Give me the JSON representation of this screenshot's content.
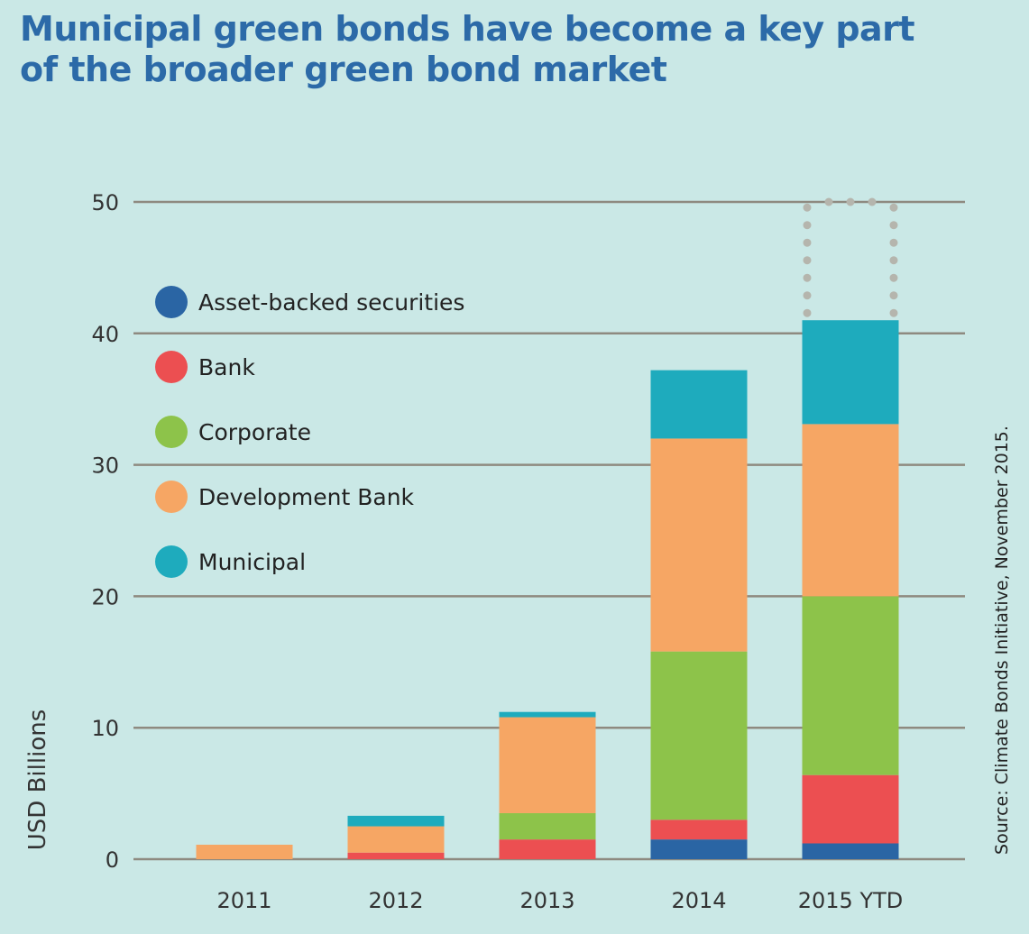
{
  "title": "Municipal green bonds have become a key part of the broader green bond market",
  "source": "Source: Climate Bonds Initiative, November 2015.",
  "chart_data": {
    "type": "bar",
    "stacked": true,
    "title": "Municipal green bonds have become a key part of the broader green bond market",
    "xlabel": "",
    "ylabel": "USD Billions",
    "ylim": [
      0,
      50
    ],
    "yticks": [
      0,
      10,
      20,
      30,
      40,
      50
    ],
    "grid": true,
    "legend_position": "top-left",
    "categories": [
      "2011",
      "2012",
      "2013",
      "2014",
      "2015 YTD"
    ],
    "series": [
      {
        "name": "Asset-backed securities",
        "color": "#2a65a4",
        "values": [
          0,
          0,
          0,
          1.5,
          1.2
        ]
      },
      {
        "name": "Bank",
        "color": "#ec4f51",
        "values": [
          0,
          0.5,
          1.5,
          1.5,
          5.2
        ]
      },
      {
        "name": "Corporate",
        "color": "#8dc34a",
        "values": [
          0,
          0,
          2.0,
          12.8,
          13.6
        ]
      },
      {
        "name": "Development Bank",
        "color": "#f6a664",
        "values": [
          1.1,
          2.0,
          7.3,
          16.2,
          13.1
        ]
      },
      {
        "name": "Municipal",
        "color": "#1eabbd",
        "values": [
          0,
          0.8,
          0.4,
          5.2,
          7.9
        ]
      }
    ],
    "annotations": [
      {
        "category": "2015 YTD",
        "type": "dotted-outline",
        "from": 41,
        "to": 50
      }
    ]
  }
}
